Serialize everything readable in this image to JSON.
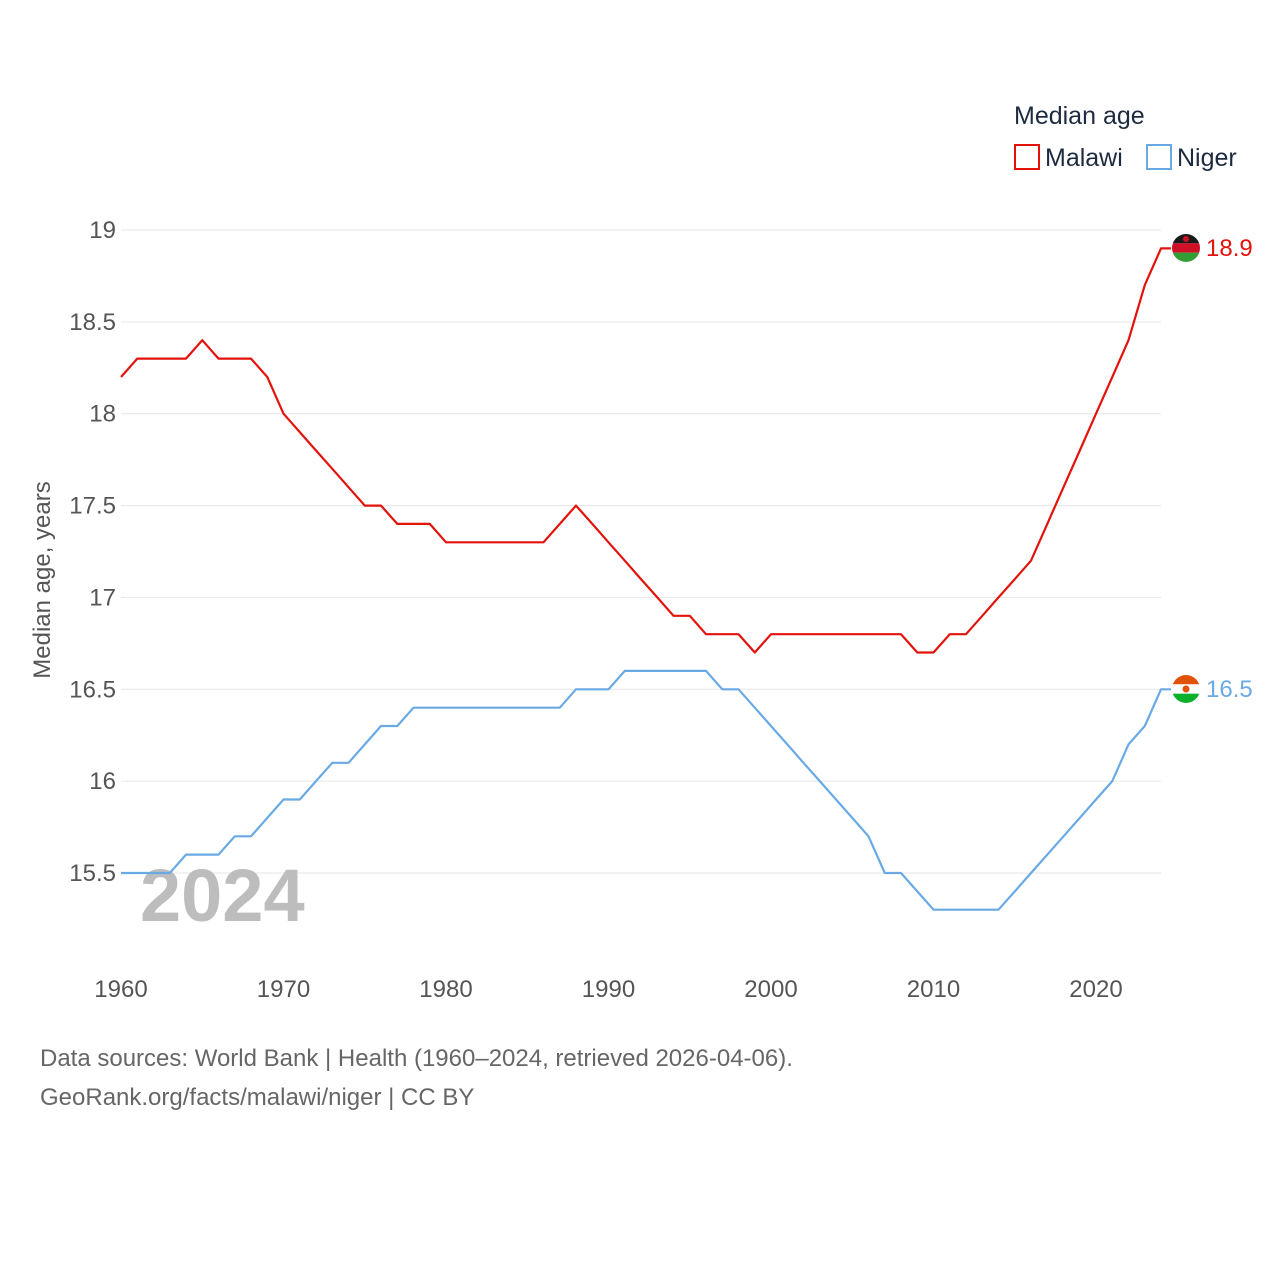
{
  "chart_data": {
    "type": "line",
    "ylabel": "Median age, years",
    "legend_title": "Median age",
    "legend_position": "top-right",
    "year_label": "2024",
    "xlim": [
      1960,
      2024
    ],
    "ylim": [
      15,
      19.3
    ],
    "x_ticks": [
      1960,
      1970,
      1980,
      1990,
      2000,
      2010,
      2020
    ],
    "y_ticks": [
      15.5,
      16,
      16.5,
      17,
      17.5,
      18,
      18.5,
      19
    ],
    "grid": true,
    "series": [
      {
        "name": "Malawi",
        "color": "#e3120b",
        "end_label": "18.9",
        "x": [
          1960,
          1961,
          1962,
          1963,
          1964,
          1965,
          1966,
          1967,
          1968,
          1969,
          1970,
          1971,
          1972,
          1973,
          1974,
          1975,
          1976,
          1977,
          1978,
          1979,
          1980,
          1981,
          1982,
          1983,
          1984,
          1985,
          1986,
          1987,
          1988,
          1989,
          1990,
          1991,
          1992,
          1993,
          1994,
          1995,
          1996,
          1997,
          1998,
          1999,
          2000,
          2001,
          2002,
          2003,
          2004,
          2005,
          2006,
          2007,
          2008,
          2009,
          2010,
          2011,
          2012,
          2013,
          2014,
          2015,
          2016,
          2017,
          2018,
          2019,
          2020,
          2021,
          2022,
          2023,
          2024
        ],
        "values": [
          18.2,
          18.3,
          18.3,
          18.3,
          18.3,
          18.4,
          18.3,
          18.3,
          18.3,
          18.2,
          18.0,
          17.9,
          17.8,
          17.7,
          17.6,
          17.5,
          17.5,
          17.4,
          17.4,
          17.4,
          17.3,
          17.3,
          17.3,
          17.3,
          17.3,
          17.3,
          17.3,
          17.4,
          17.5,
          17.4,
          17.3,
          17.2,
          17.1,
          17.0,
          16.9,
          16.9,
          16.8,
          16.8,
          16.8,
          16.7,
          16.8,
          16.8,
          16.8,
          16.8,
          16.8,
          16.8,
          16.8,
          16.8,
          16.8,
          16.7,
          16.7,
          16.8,
          16.8,
          16.9,
          17.0,
          17.1,
          17.2,
          17.4,
          17.6,
          17.8,
          18.0,
          18.2,
          18.4,
          18.7,
          18.9
        ]
      },
      {
        "name": "Niger",
        "color": "#6aaae4",
        "end_label": "16.5",
        "x": [
          1960,
          1961,
          1962,
          1963,
          1964,
          1965,
          1966,
          1967,
          1968,
          1969,
          1970,
          1971,
          1972,
          1973,
          1974,
          1975,
          1976,
          1977,
          1978,
          1979,
          1980,
          1981,
          1982,
          1983,
          1984,
          1985,
          1986,
          1987,
          1988,
          1989,
          1990,
          1991,
          1992,
          1993,
          1994,
          1995,
          1996,
          1997,
          1998,
          1999,
          2000,
          2001,
          2002,
          2003,
          2004,
          2005,
          2006,
          2007,
          2008,
          2009,
          2010,
          2011,
          2012,
          2013,
          2014,
          2015,
          2016,
          2017,
          2018,
          2019,
          2020,
          2021,
          2022,
          2023,
          2024
        ],
        "values": [
          15.5,
          15.5,
          15.5,
          15.5,
          15.6,
          15.6,
          15.6,
          15.7,
          15.7,
          15.8,
          15.9,
          15.9,
          16.0,
          16.1,
          16.1,
          16.2,
          16.3,
          16.3,
          16.4,
          16.4,
          16.4,
          16.4,
          16.4,
          16.4,
          16.4,
          16.4,
          16.4,
          16.4,
          16.5,
          16.5,
          16.5,
          16.6,
          16.6,
          16.6,
          16.6,
          16.6,
          16.6,
          16.5,
          16.5,
          16.4,
          16.3,
          16.2,
          16.1,
          16.0,
          15.9,
          15.8,
          15.7,
          15.5,
          15.5,
          15.4,
          15.3,
          15.3,
          15.3,
          15.3,
          15.3,
          15.4,
          15.5,
          15.6,
          15.7,
          15.8,
          15.9,
          16.0,
          16.2,
          16.3,
          16.5
        ]
      }
    ]
  },
  "footer": {
    "line1": "Data sources: World Bank | Health (1960–2024, retrieved 2026-04-06).",
    "line2": "GeoRank.org/facts/malawi/niger | CC BY"
  },
  "flags": {
    "malawi": {
      "black": "#1a1a1a",
      "red": "#ce1126",
      "green": "#339e35",
      "sun": "#ce1126"
    },
    "niger": {
      "orange": "#e05206",
      "white": "#ffffff",
      "green": "#0db02b",
      "disc": "#e05206"
    }
  }
}
